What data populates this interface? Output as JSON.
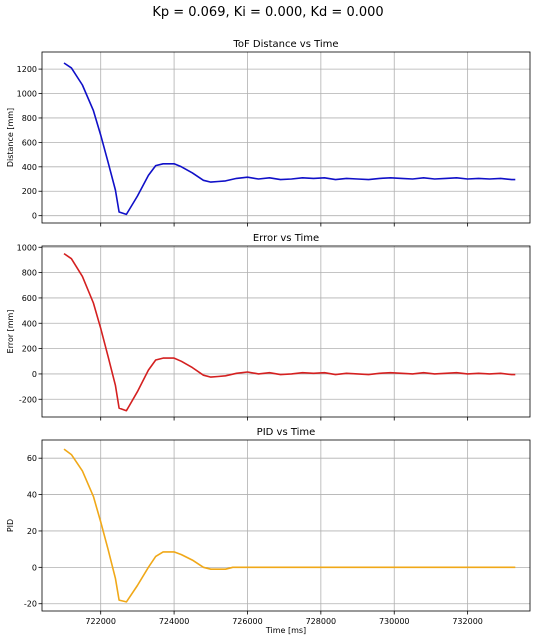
{
  "figure": {
    "suptitle": "Kp = 0.069, Ki = 0.000, Kd = 0.000",
    "xlabel": "Time [ms]"
  },
  "chart_data": [
    {
      "type": "line",
      "title": "ToF Distance vs Time",
      "xlabel": "Time [ms]",
      "ylabel": "Distance [mm]",
      "color": "#1010c8",
      "grid": true,
      "xlim": [
        720400,
        733700
      ],
      "ylim": [
        -60,
        1340
      ],
      "xticks": [
        722000,
        724000,
        726000,
        728000,
        730000,
        732000
      ],
      "yticks": [
        0,
        200,
        400,
        600,
        800,
        1000,
        1200
      ],
      "x": [
        721000,
        721200,
        721500,
        721800,
        722000,
        722200,
        722400,
        722500,
        722700,
        723000,
        723300,
        723500,
        723700,
        724000,
        724200,
        724500,
        724800,
        725000,
        725200,
        725400,
        725700,
        726000,
        726300,
        726600,
        726900,
        727200,
        727500,
        727800,
        728100,
        728400,
        728700,
        729000,
        729300,
        729600,
        729900,
        730200,
        730500,
        730800,
        731100,
        731400,
        731700,
        732000,
        732300,
        732600,
        732900,
        733200,
        733300
      ],
      "y": [
        1250,
        1210,
        1070,
        860,
        660,
        440,
        210,
        30,
        10,
        160,
        330,
        410,
        425,
        425,
        400,
        350,
        290,
        275,
        280,
        285,
        305,
        315,
        300,
        310,
        295,
        300,
        310,
        305,
        310,
        295,
        305,
        300,
        295,
        305,
        310,
        305,
        300,
        310,
        300,
        305,
        310,
        300,
        305,
        300,
        305,
        295,
        295
      ]
    },
    {
      "type": "line",
      "title": "Error vs Time",
      "xlabel": "Time [ms]",
      "ylabel": "Error [mm]",
      "color": "#d42020",
      "grid": true,
      "xlim": [
        720400,
        733700
      ],
      "ylim": [
        -340,
        1010
      ],
      "xticks": [
        722000,
        724000,
        726000,
        728000,
        730000,
        732000
      ],
      "yticks": [
        -200,
        0,
        200,
        400,
        600,
        800,
        1000
      ],
      "x": [
        721000,
        721200,
        721500,
        721800,
        722000,
        722200,
        722400,
        722500,
        722700,
        723000,
        723300,
        723500,
        723700,
        724000,
        724200,
        724500,
        724800,
        725000,
        725200,
        725400,
        725700,
        726000,
        726300,
        726600,
        726900,
        727200,
        727500,
        727800,
        728100,
        728400,
        728700,
        729000,
        729300,
        729600,
        729900,
        730200,
        730500,
        730800,
        731100,
        731400,
        731700,
        732000,
        732300,
        732600,
        732900,
        733200,
        733300
      ],
      "y": [
        950,
        910,
        770,
        560,
        360,
        140,
        -90,
        -270,
        -290,
        -140,
        30,
        110,
        125,
        125,
        100,
        50,
        -10,
        -25,
        -20,
        -15,
        5,
        15,
        0,
        10,
        -5,
        0,
        10,
        5,
        10,
        -5,
        5,
        0,
        -5,
        5,
        10,
        5,
        0,
        10,
        0,
        5,
        10,
        0,
        5,
        0,
        5,
        -5,
        -5
      ]
    },
    {
      "type": "line",
      "title": "PID vs Time",
      "xlabel": "Time [ms]",
      "ylabel": "PID",
      "color": "#f0a818",
      "grid": true,
      "xlim": [
        720400,
        733700
      ],
      "ylim": [
        -24,
        70
      ],
      "xticks": [
        722000,
        724000,
        726000,
        728000,
        730000,
        732000
      ],
      "yticks": [
        -20,
        0,
        20,
        40,
        60
      ],
      "x": [
        721000,
        721200,
        721500,
        721800,
        722000,
        722200,
        722400,
        722500,
        722700,
        723000,
        723300,
        723500,
        723700,
        724000,
        724200,
        724500,
        724800,
        725000,
        725200,
        725400,
        725600,
        726000,
        728000,
        730000,
        732000,
        733300
      ],
      "y": [
        65,
        62,
        53,
        39,
        25,
        10,
        -6,
        -18,
        -19,
        -10,
        0,
        6,
        8.5,
        8.5,
        7,
        4,
        0,
        -1,
        -1,
        -1,
        0,
        0,
        0,
        0,
        0,
        0
      ]
    }
  ]
}
